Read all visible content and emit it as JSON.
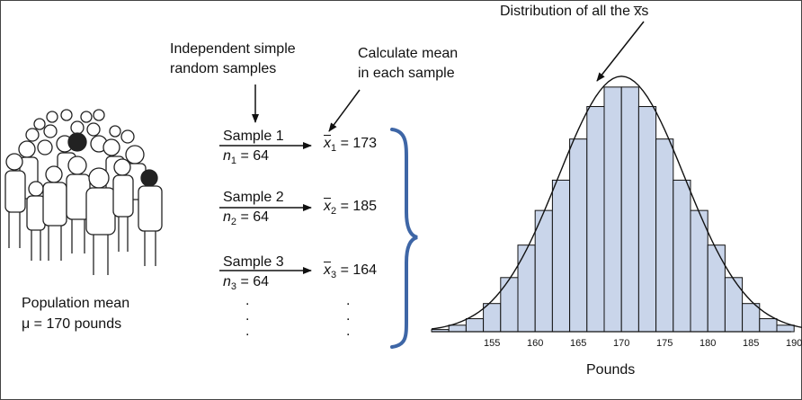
{
  "header": {
    "distribution_title": "Distribution of all the x̅s",
    "independent_samples": [
      "Independent simple",
      "random samples"
    ],
    "calculate_mean": [
      "Calculate mean",
      "in each sample"
    ]
  },
  "population": {
    "line1": "Population mean",
    "line2": "μ = 170 pounds"
  },
  "samples": [
    {
      "label": "Sample 1",
      "n_value": "64",
      "xbar_value": "173",
      "sub": "1"
    },
    {
      "label": "Sample 2",
      "n_value": "64",
      "xbar_value": "185",
      "sub": "2"
    },
    {
      "label": "Sample 3",
      "n_value": "64",
      "xbar_value": "164",
      "sub": "3"
    }
  ],
  "ellipsis_dots": ".",
  "chart_data": {
    "type": "bar",
    "title": "Distribution of all the x̅s",
    "xlabel": "Pounds",
    "ylabel": "",
    "bin_width": 2,
    "bin_edges": [
      148,
      150,
      152,
      154,
      156,
      158,
      160,
      162,
      164,
      166,
      168,
      170,
      172,
      174,
      176,
      178,
      180,
      182,
      184,
      186,
      188,
      190
    ],
    "values": [
      1,
      3,
      6,
      13,
      25,
      40,
      56,
      70,
      89,
      104,
      113,
      113,
      104,
      89,
      70,
      56,
      40,
      25,
      13,
      6,
      3
    ],
    "ylim": [
      0,
      120
    ],
    "tick_labels": [
      "155",
      "160",
      "165",
      "170",
      "175",
      "180",
      "185",
      "190"
    ],
    "tick_values": [
      155,
      160,
      165,
      170,
      175,
      180,
      185,
      190
    ],
    "overlay": "normal curve",
    "mean": 170,
    "bar_color": "#c9d5ea"
  },
  "colors": {
    "brace": "#3e66a6",
    "bar_fill": "#c9d5ea",
    "stroke": "#111111"
  }
}
